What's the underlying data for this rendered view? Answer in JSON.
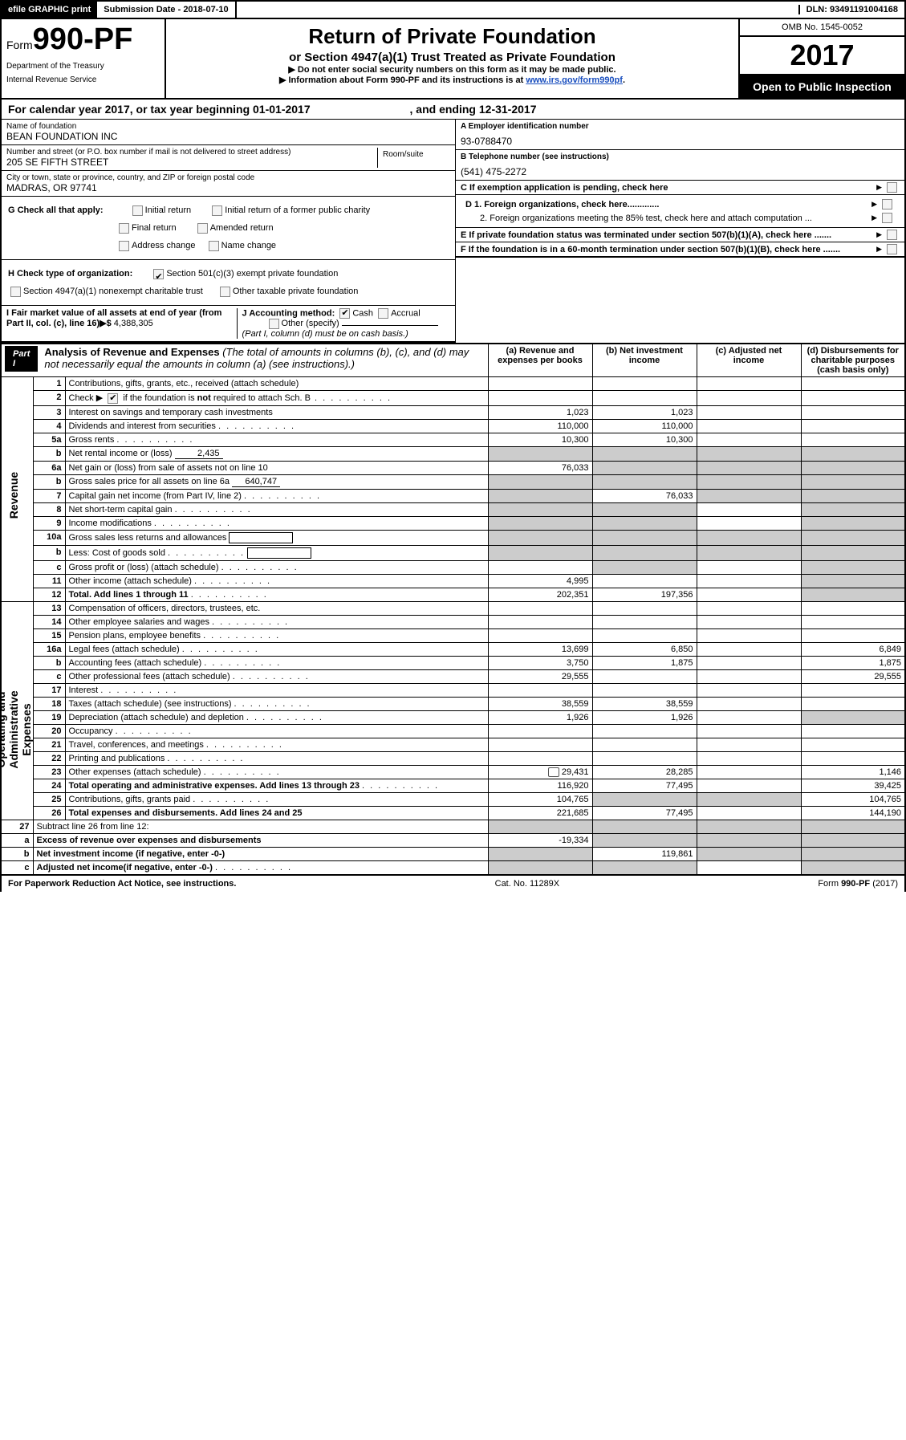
{
  "top": {
    "efile": "efile GRAPHIC print",
    "submission": "Submission Date - 2018-07-10",
    "dln": "DLN: 93491191004168"
  },
  "header": {
    "form_prefix": "Form",
    "form_number": "990-PF",
    "dept1": "Department of the Treasury",
    "dept2": "Internal Revenue Service",
    "title": "Return of Private Foundation",
    "subtitle": "or Section 4947(a)(1) Trust Treated as Private Foundation",
    "note1": "▶ Do not enter social security numbers on this form as it may be made public.",
    "note2_pre": "▶ Information about Form 990-PF and its instructions is at ",
    "note2_link": "www.irs.gov/form990pf",
    "note2_post": ".",
    "omb": "OMB No. 1545-0052",
    "year": "2017",
    "open": "Open to Public Inspection"
  },
  "calyear": {
    "pre": "For calendar year 2017, or tax year beginning ",
    "begin": "01-01-2017",
    "mid": " , and ending ",
    "end": "12-31-2017"
  },
  "identity": {
    "name_label": "Name of foundation",
    "name": "BEAN FOUNDATION INC",
    "addr_label": "Number and street (or P.O. box number if mail is not delivered to street address)",
    "addr": "205 SE FIFTH STREET",
    "room_label": "Room/suite",
    "city_label": "City or town, state or province, country, and ZIP or foreign postal code",
    "city": "MADRAS, OR  97741",
    "a_label": "A Employer identification number",
    "a_val": "93-0788470",
    "b_label": "B  Telephone number (see instructions)",
    "b_val": "(541) 475-2272",
    "c_label": "C  If exemption application is pending, check here"
  },
  "g": {
    "label": "G Check all that apply:",
    "opts": [
      "Initial return",
      "Initial return of a former public charity",
      "Final return",
      "Amended return",
      "Address change",
      "Name change"
    ]
  },
  "h": {
    "label": "H Check type of organization:",
    "opt1": "Section 501(c)(3) exempt private foundation",
    "opt2": "Section 4947(a)(1) nonexempt charitable trust",
    "opt3": "Other taxable private foundation"
  },
  "d": {
    "d1": "D 1. Foreign organizations, check here.............",
    "d2": "2. Foreign organizations meeting the 85% test, check here and attach computation ..."
  },
  "e": {
    "text": "E  If private foundation status was terminated under section 507(b)(1)(A), check here ......."
  },
  "f": {
    "text": "F  If the foundation is in a 60-month termination under section 507(b)(1)(B), check here ......."
  },
  "i": {
    "label": "I Fair market value of all assets at end of year (from Part II, col. (c), line 16)▶$  ",
    "val": "4,388,305"
  },
  "j": {
    "label": "J Accounting method:",
    "cash": "Cash",
    "accrual": "Accrual",
    "other": "Other (specify)",
    "note": "(Part I, column (d) must be on cash basis.)"
  },
  "part1": {
    "badge": "Part I",
    "title": "Analysis of Revenue and Expenses",
    "title_note": " (The total of amounts in columns (b), (c), and (d) may not necessarily equal the amounts in column (a) (see instructions).)",
    "col_a": "(a)   Revenue and expenses per books",
    "col_b": "(b)  Net investment income",
    "col_c": "(c)  Adjusted net income",
    "col_d": "(d)  Disbursements for charitable purposes (cash basis only)"
  },
  "sections": {
    "revenue": "Revenue",
    "expenses": "Operating and Administrative Expenses"
  },
  "lines": [
    {
      "n": "1",
      "d": "Contributions, gifts, grants, etc., received (attach schedule)",
      "a": "",
      "b": "",
      "c": "",
      "e": ""
    },
    {
      "n": "2",
      "d": "Check ▶ [✔] if the foundation is not required to attach Sch. B",
      "a": "",
      "b": "",
      "c": "",
      "e": "",
      "dotsfull": true,
      "inlinecheck": true
    },
    {
      "n": "3",
      "d": "Interest on savings and temporary cash investments",
      "a": "1,023",
      "b": "1,023",
      "c": "",
      "e": ""
    },
    {
      "n": "4",
      "d": "Dividends and interest from securities",
      "a": "110,000",
      "b": "110,000",
      "c": "",
      "e": "",
      "dots": true
    },
    {
      "n": "5a",
      "d": "Gross rents",
      "a": "10,300",
      "b": "10,300",
      "c": "",
      "e": "",
      "dots": true
    },
    {
      "n": "b",
      "d": "Net rental income or (loss)",
      "inline": "2,435"
    },
    {
      "n": "6a",
      "d": "Net gain or (loss) from sale of assets not on line 10",
      "a": "76,033",
      "b": "s",
      "c": "s",
      "e": "s"
    },
    {
      "n": "b",
      "d": "Gross sales price for all assets on line 6a",
      "inline": "640,747"
    },
    {
      "n": "7",
      "d": "Capital gain net income (from Part IV, line 2)",
      "a": "s",
      "b": "76,033",
      "c": "s",
      "e": "s",
      "dots": true
    },
    {
      "n": "8",
      "d": "Net short-term capital gain",
      "a": "s",
      "b": "s",
      "c": "",
      "e": "s",
      "dots": true
    },
    {
      "n": "9",
      "d": "Income modifications",
      "a": "s",
      "b": "s",
      "c": "",
      "e": "s",
      "dots": true
    },
    {
      "n": "10a",
      "d": "Gross sales less returns and allowances",
      "box": true
    },
    {
      "n": "b",
      "d": "Less: Cost of goods sold",
      "box": true,
      "dots": true
    },
    {
      "n": "c",
      "d": "Gross profit or (loss) (attach schedule)",
      "a": "",
      "b": "s",
      "c": "",
      "e": "s",
      "dots": true
    },
    {
      "n": "11",
      "d": "Other income (attach schedule)",
      "a": "4,995",
      "b": "",
      "c": "",
      "e": "s",
      "dots": true
    },
    {
      "n": "12",
      "d": "Total. Add lines 1 through 11",
      "a": "202,351",
      "b": "197,356",
      "c": "",
      "e": "s",
      "bold": true,
      "dots": true
    }
  ],
  "explines": [
    {
      "n": "13",
      "d": "Compensation of officers, directors, trustees, etc.",
      "a": "",
      "b": "",
      "c": "",
      "e": ""
    },
    {
      "n": "14",
      "d": "Other employee salaries and wages",
      "a": "",
      "b": "",
      "c": "",
      "e": "",
      "dots": true
    },
    {
      "n": "15",
      "d": "Pension plans, employee benefits",
      "a": "",
      "b": "",
      "c": "",
      "e": "",
      "dots": true
    },
    {
      "n": "16a",
      "d": "Legal fees (attach schedule)",
      "a": "13,699",
      "b": "6,850",
      "c": "",
      "e": "6,849",
      "dots": true
    },
    {
      "n": "b",
      "d": "Accounting fees (attach schedule)",
      "a": "3,750",
      "b": "1,875",
      "c": "",
      "e": "1,875",
      "dots": true
    },
    {
      "n": "c",
      "d": "Other professional fees (attach schedule)",
      "a": "29,555",
      "b": "",
      "c": "",
      "e": "29,555",
      "dots": true
    },
    {
      "n": "17",
      "d": "Interest",
      "a": "",
      "b": "",
      "c": "",
      "e": "",
      "dots": true
    },
    {
      "n": "18",
      "d": "Taxes (attach schedule) (see instructions)",
      "a": "38,559",
      "b": "38,559",
      "c": "",
      "e": "",
      "dots": true
    },
    {
      "n": "19",
      "d": "Depreciation (attach schedule) and depletion",
      "a": "1,926",
      "b": "1,926",
      "c": "",
      "e": "s",
      "dots": true
    },
    {
      "n": "20",
      "d": "Occupancy",
      "a": "",
      "b": "",
      "c": "",
      "e": "",
      "dots": true
    },
    {
      "n": "21",
      "d": "Travel, conferences, and meetings",
      "a": "",
      "b": "",
      "c": "",
      "e": "",
      "dots": true
    },
    {
      "n": "22",
      "d": "Printing and publications",
      "a": "",
      "b": "",
      "c": "",
      "e": "",
      "dots": true
    },
    {
      "n": "23",
      "d": "Other expenses (attach schedule)",
      "a": "29,431",
      "b": "28,285",
      "c": "",
      "e": "1,146",
      "icon": true,
      "dots": true
    },
    {
      "n": "24",
      "d": "Total operating and administrative expenses. Add lines 13 through 23",
      "a": "116,920",
      "b": "77,495",
      "c": "",
      "e": "39,425",
      "bold": true,
      "dots": true
    },
    {
      "n": "25",
      "d": "Contributions, gifts, grants paid",
      "a": "104,765",
      "b": "s",
      "c": "s",
      "e": "104,765",
      "dots": true
    },
    {
      "n": "26",
      "d": "Total expenses and disbursements. Add lines 24 and 25",
      "a": "221,685",
      "b": "77,495",
      "c": "",
      "e": "144,190",
      "bold": true
    }
  ],
  "botlines": [
    {
      "n": "27",
      "d": "Subtract line 26 from line 12:"
    },
    {
      "n": "a",
      "d": "Excess of revenue over expenses and disbursements",
      "a": "-19,334",
      "b": "s",
      "c": "s",
      "e": "s",
      "bold": true
    },
    {
      "n": "b",
      "d": "Net investment income (if negative, enter -0-)",
      "a": "s",
      "b": "119,861",
      "c": "s",
      "e": "s",
      "bold": true
    },
    {
      "n": "c",
      "d": "Adjusted net income(if negative, enter -0-)",
      "a": "s",
      "b": "s",
      "c": "",
      "e": "s",
      "bold": true,
      "dots": true
    }
  ],
  "footer": {
    "left": "For Paperwork Reduction Act Notice, see instructions.",
    "mid": "Cat. No. 11289X",
    "right": "Form 990-PF (2017)"
  }
}
